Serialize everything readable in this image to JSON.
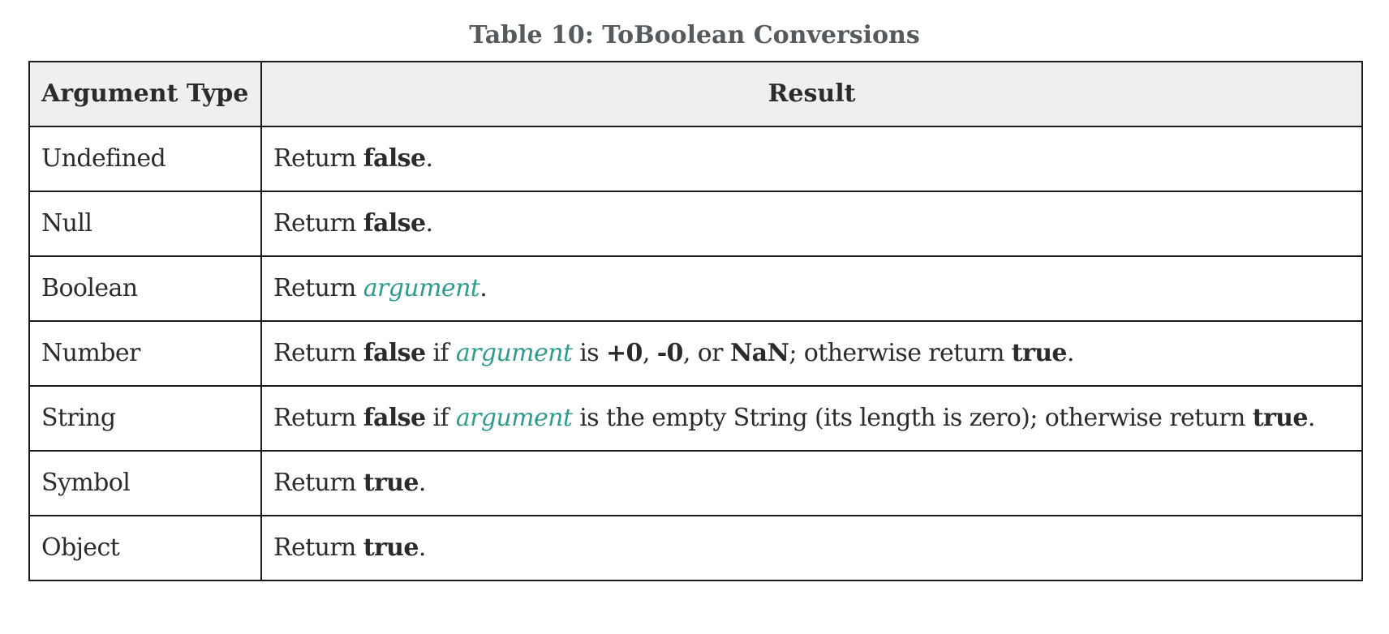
{
  "caption": "Table 10: ToBoolean Conversions",
  "headers": {
    "argument_type": "Argument Type",
    "result": "Result"
  },
  "colors": {
    "header_background": "#efefef",
    "argument_italic": "#2e9c8f",
    "caption": "#555a5e",
    "border": "#1a1a1a"
  },
  "rows": [
    {
      "type": "Undefined",
      "result": [
        {
          "text": "Return ",
          "style": "plain"
        },
        {
          "text": "false",
          "style": "bold"
        },
        {
          "text": ".",
          "style": "plain"
        }
      ]
    },
    {
      "type": "Null",
      "result": [
        {
          "text": "Return ",
          "style": "plain"
        },
        {
          "text": "false",
          "style": "bold"
        },
        {
          "text": ".",
          "style": "plain"
        }
      ]
    },
    {
      "type": "Boolean",
      "result": [
        {
          "text": "Return ",
          "style": "plain"
        },
        {
          "text": "argument",
          "style": "arg"
        },
        {
          "text": ".",
          "style": "plain"
        }
      ]
    },
    {
      "type": "Number",
      "result": [
        {
          "text": "Return ",
          "style": "plain"
        },
        {
          "text": "false",
          "style": "bold"
        },
        {
          "text": " if ",
          "style": "plain"
        },
        {
          "text": "argument",
          "style": "arg"
        },
        {
          "text": " is ",
          "style": "plain"
        },
        {
          "text": "+0",
          "style": "bold"
        },
        {
          "text": ", ",
          "style": "plain"
        },
        {
          "text": "-0",
          "style": "bold"
        },
        {
          "text": ", or ",
          "style": "plain"
        },
        {
          "text": "NaN",
          "style": "bold"
        },
        {
          "text": "; otherwise return ",
          "style": "plain"
        },
        {
          "text": "true",
          "style": "bold"
        },
        {
          "text": ".",
          "style": "plain"
        }
      ]
    },
    {
      "type": "String",
      "result": [
        {
          "text": "Return ",
          "style": "plain"
        },
        {
          "text": "false",
          "style": "bold"
        },
        {
          "text": " if ",
          "style": "plain"
        },
        {
          "text": "argument",
          "style": "arg"
        },
        {
          "text": " is the empty String (its length is zero); otherwise return ",
          "style": "plain"
        },
        {
          "text": "true",
          "style": "bold"
        },
        {
          "text": ".",
          "style": "plain"
        }
      ]
    },
    {
      "type": "Symbol",
      "result": [
        {
          "text": "Return ",
          "style": "plain"
        },
        {
          "text": "true",
          "style": "bold"
        },
        {
          "text": ".",
          "style": "plain"
        }
      ]
    },
    {
      "type": "Object",
      "result": [
        {
          "text": "Return ",
          "style": "plain"
        },
        {
          "text": "true",
          "style": "bold"
        },
        {
          "text": ".",
          "style": "plain"
        }
      ]
    }
  ]
}
